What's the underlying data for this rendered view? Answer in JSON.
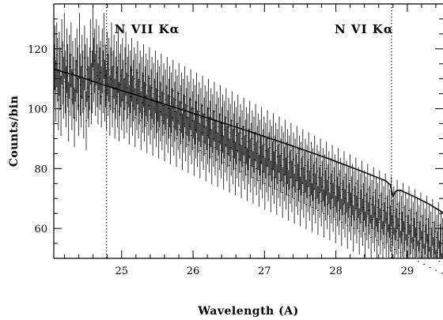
{
  "chart_data": {
    "type": "scatter",
    "xlabel": "Wavelength (A)",
    "ylabel": "Counts/bin",
    "xlim": [
      24.05,
      29.5
    ],
    "ylim": [
      50,
      135
    ],
    "x_ticks": [
      25,
      26,
      27,
      28,
      29
    ],
    "y_ticks": [
      60,
      80,
      100,
      120
    ],
    "grid": false,
    "series": [
      {
        "kind": "data_with_errorbars",
        "bin_start": 24.05,
        "bin_width": 0.0118,
        "n_bins": 462,
        "sigma": "sqrt(counts)",
        "values": [
          111,
          117,
          106,
          118,
          113,
          103,
          115,
          110,
          101,
          119,
          112,
          107,
          121,
          109,
          104,
          116,
          111,
          99,
          114,
          108,
          118,
          103,
          112,
          107,
          97,
          113,
          106,
          116,
          110,
          101,
          121,
          108,
          104,
          114,
          109,
          100,
          117,
          111,
          96,
          113,
          107,
          104,
          110,
          119,
          105,
          109,
          125,
          113,
          116,
          108,
          119,
          111,
          105,
          117,
          110,
          112,
          104,
          116,
          109,
          121,
          106,
          111,
          103,
          115,
          108,
          113,
          101,
          110,
          118,
          104,
          109,
          114,
          100,
          107,
          112,
          104,
          116,
          99,
          108,
          111,
          103,
          113,
          106,
          100,
          110,
          115,
          102,
          107,
          111,
          98,
          109,
          104,
          113,
          101,
          106,
          110,
          97,
          108,
          103,
          112,
          100,
          105,
          109,
          96,
          107,
          102,
          111,
          99,
          104,
          108,
          95,
          106,
          101,
          110,
          98,
          103,
          107,
          94,
          105,
          100,
          109,
          97,
          102,
          106,
          93,
          104,
          99,
          108,
          96,
          101,
          105,
          92,
          103,
          98,
          107,
          95,
          100,
          104,
          91,
          102,
          97,
          106,
          94,
          99,
          103,
          90,
          101,
          96,
          105,
          93,
          98,
          102,
          89,
          100,
          95,
          104,
          92,
          97,
          101,
          88,
          99,
          94,
          103,
          91,
          96,
          100,
          87,
          98,
          93,
          102,
          90,
          95,
          99,
          86,
          97,
          92,
          101,
          89,
          94,
          98,
          85,
          96,
          91,
          100,
          88,
          93,
          97,
          84,
          95,
          90,
          99,
          87,
          92,
          96,
          83,
          94,
          89,
          98,
          86,
          91,
          95,
          82,
          93,
          88,
          97,
          85,
          90,
          94,
          81,
          92,
          87,
          96,
          84,
          89,
          93,
          80,
          91,
          86,
          95,
          83,
          88,
          92,
          79,
          90,
          85,
          94,
          82,
          87,
          91,
          78,
          89,
          84,
          93,
          81,
          86,
          90,
          77,
          88,
          83,
          92,
          80,
          85,
          89,
          76,
          87,
          82,
          91,
          79,
          84,
          88,
          75,
          86,
          81,
          90,
          78,
          83,
          87,
          74,
          85,
          80,
          89,
          77,
          82,
          86,
          73,
          84,
          79,
          88,
          76,
          81,
          85,
          72,
          83,
          78,
          87,
          75,
          80,
          84,
          71,
          82,
          77,
          86,
          74,
          79,
          83,
          70,
          81,
          76,
          85,
          73,
          78,
          82,
          69,
          80,
          75,
          84,
          72,
          77,
          81,
          68,
          79,
          74,
          83,
          71,
          76,
          80,
          67,
          78,
          73,
          82,
          70,
          75,
          79,
          66,
          77,
          72,
          81,
          69,
          74,
          78,
          65,
          76,
          71,
          80,
          68,
          73,
          77,
          64,
          75,
          70,
          79,
          67,
          72,
          76,
          63,
          74,
          69,
          78,
          66,
          71,
          75,
          62,
          73,
          68,
          77,
          65,
          70,
          74,
          61,
          72,
          67,
          76,
          64,
          69,
          73,
          60,
          71,
          66,
          75,
          63,
          68,
          72,
          59,
          70,
          65,
          74,
          62,
          67,
          71,
          58,
          69,
          64,
          73,
          61,
          66,
          70,
          57,
          68,
          63,
          72,
          60,
          65,
          69,
          56,
          67,
          62,
          71,
          59,
          64,
          68,
          55,
          66,
          61,
          70,
          58,
          63,
          67,
          54,
          65,
          60,
          69,
          57,
          62,
          66,
          53,
          64,
          59,
          68,
          56,
          61,
          65,
          52,
          63,
          58,
          67,
          55,
          60,
          64,
          51,
          62,
          57,
          66,
          54,
          59,
          63,
          50,
          61,
          56,
          65,
          53,
          58,
          62,
          49,
          60,
          55,
          64,
          52,
          57,
          61,
          48,
          59,
          54,
          63,
          51,
          56,
          60,
          47,
          58,
          53,
          62,
          50,
          55,
          59,
          46,
          57,
          52,
          61,
          49,
          54,
          58,
          45,
          56,
          51,
          60,
          48,
          53,
          57,
          44
        ]
      },
      {
        "kind": "model_line",
        "x": [
          24.05,
          24.3,
          24.6,
          24.79,
          24.9,
          25.2,
          25.5,
          25.8,
          26.1,
          26.4,
          26.7,
          27.0,
          27.3,
          27.6,
          27.9,
          28.2,
          28.5,
          28.7,
          28.76,
          28.8,
          28.84,
          28.9,
          29.1,
          29.3,
          29.5
        ],
        "y": [
          113.2,
          111.5,
          109.2,
          107.6,
          106.8,
          104.6,
          102.3,
          100.0,
          97.7,
          95.4,
          93.1,
          90.7,
          88.3,
          85.8,
          83.3,
          80.6,
          77.8,
          75.9,
          74.6,
          70.8,
          72.5,
          72.8,
          70.6,
          68.2,
          65.3
        ]
      }
    ],
    "reference_lines": [
      {
        "x": 24.79,
        "label": "N VII Kα",
        "style": "dotted"
      },
      {
        "x": 28.78,
        "label": "N VI Kα",
        "style": "dotted"
      }
    ]
  }
}
